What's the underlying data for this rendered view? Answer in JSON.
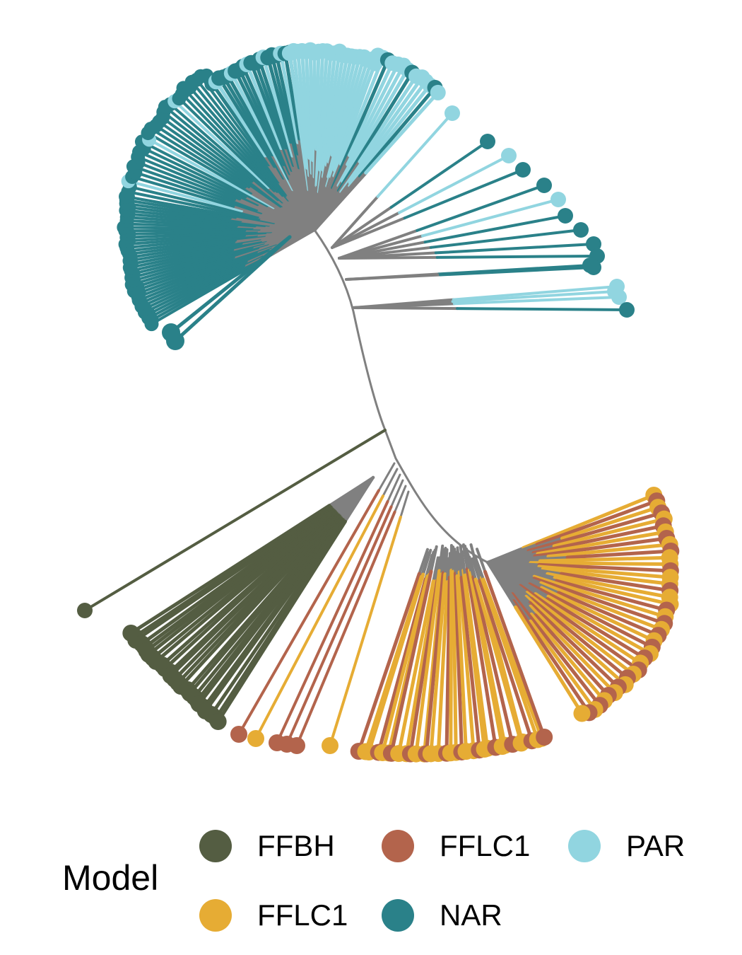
{
  "legend": {
    "title": "Model",
    "items": [
      {
        "label": "FFBH",
        "color": "#545D42"
      },
      {
        "label": "FFLC1",
        "color": "#B3644C"
      },
      {
        "label": "PAR",
        "color": "#91D5E0"
      },
      {
        "label": "FFLC1",
        "color": "#E6AC34"
      },
      {
        "label": "NAR",
        "color": "#2A8189"
      }
    ]
  },
  "colors": {
    "internal_branch": "#808080",
    "FFBH": "#545D42",
    "FFLC1_red": "#B3644C",
    "FFLC1_yellow": "#E6AC34",
    "NAR": "#2A8189",
    "PAR": "#91D5E0"
  }
}
